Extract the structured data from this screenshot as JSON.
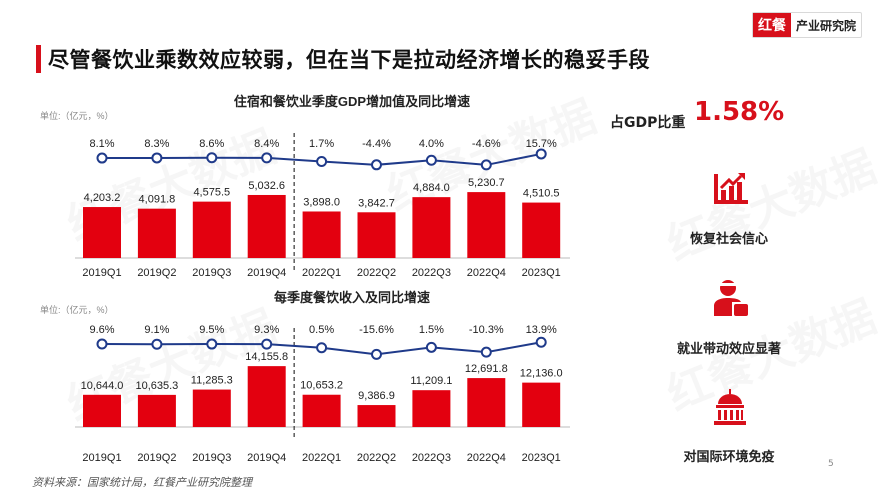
{
  "header": {
    "logo_main": "红餐",
    "logo_sub": "产业研究院",
    "title": "尽管餐饮业乘数效应较弱，但在当下是拉动经济增长的稳妥手段"
  },
  "colors": {
    "accent": "#d7101b",
    "line": "#1f3a8a",
    "bar": "#e3000f"
  },
  "chart_data": [
    {
      "type": "bar",
      "title": "住宿和餐饮业季度GDP增加值及同比增速",
      "unit": "单位:（亿元，%）",
      "categories": [
        "2019Q1",
        "2019Q2",
        "2019Q3",
        "2019Q4",
        "2022Q1",
        "2022Q2",
        "2022Q3",
        "2022Q4",
        "2023Q1"
      ],
      "bar_labels": [
        "4,203.2",
        "4,091.8",
        "4,575.5",
        "5,032.6",
        "3,898.0",
        "3,842.7",
        "4,884.0",
        "5,230.7",
        "4,510.5"
      ],
      "bar_values": [
        4203.2,
        4091.8,
        4575.5,
        5032.6,
        3898.0,
        3842.7,
        4884.0,
        5230.7,
        4510.5
      ],
      "line_labels": [
        "8.1%",
        "8.3%",
        "8.6%",
        "8.4%",
        "1.7%",
        "-4.4%",
        "4.0%",
        "-4.6%",
        "15.7%"
      ],
      "line_values": [
        8.1,
        8.3,
        8.6,
        8.4,
        1.7,
        -4.4,
        4.0,
        -4.6,
        15.7
      ],
      "bar_ylim": [
        700,
        6200
      ],
      "line_ylim": [
        -88,
        97
      ],
      "divider_after": "2019Q4"
    },
    {
      "type": "bar",
      "title": "每季度餐饮收入及同比增速",
      "unit": "单位:（亿元，%）",
      "categories": [
        "2019Q1",
        "2019Q2",
        "2019Q3",
        "2019Q4",
        "2022Q1",
        "2022Q2",
        "2022Q3",
        "2022Q4",
        "2023Q1"
      ],
      "bar_labels": [
        "10,644.0",
        "10,635.3",
        "11,285.3",
        "14,155.8",
        "10,653.2",
        "9,386.9",
        "11,209.1",
        "12,691.8",
        "12,136.0"
      ],
      "bar_values": [
        10644.0,
        10635.3,
        11285.3,
        14155.8,
        10653.2,
        9386.9,
        11209.1,
        12691.8,
        12136.0
      ],
      "line_labels": [
        "9.6%",
        "9.1%",
        "9.5%",
        "9.3%",
        "0.5%",
        "-15.6%",
        "1.5%",
        "-10.3%",
        "13.9%"
      ],
      "line_values": [
        9.6,
        9.1,
        9.5,
        9.3,
        0.5,
        -15.6,
        1.5,
        -10.3,
        13.9
      ],
      "bar_ylim": [
        6700,
        16500
      ],
      "line_ylim": [
        -127,
        117
      ],
      "divider_after": "2019Q4"
    }
  ],
  "side": {
    "gdp_label": "占GDP比重",
    "gdp_value": "1.58%",
    "features": [
      {
        "label": "恢复社会信心",
        "icon": "growth-chart-icon"
      },
      {
        "label": "就业带动效应显著",
        "icon": "worker-icon"
      },
      {
        "label": "对国际环境免疫",
        "icon": "capitol-building-icon"
      }
    ]
  },
  "watermark": "红餐大数据",
  "footer": {
    "source": "资料来源：国家统计局，红餐产业研究院整理",
    "page": "5"
  }
}
